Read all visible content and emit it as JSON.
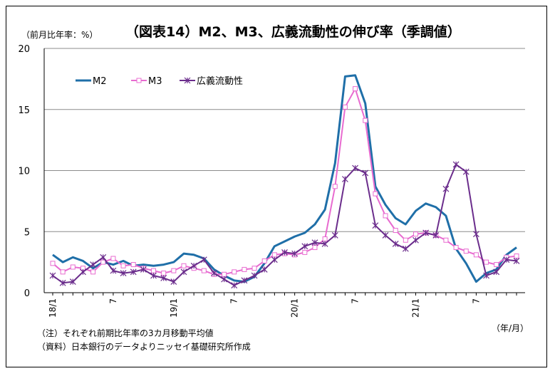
{
  "chart_data": {
    "type": "line",
    "title": "（図表14）M2、M3、広義流動性の伸び率（季調値）",
    "ylabel": "（前月比年率：%）",
    "xlabel": "（年/月）",
    "ylim": [
      0,
      20
    ],
    "yticks": [
      0,
      5,
      10,
      15,
      20
    ],
    "grid": true,
    "legend_position": "top-left",
    "x": [
      "18/1",
      "18/2",
      "18/3",
      "18/4",
      "18/5",
      "18/6",
      "18/7",
      "18/8",
      "18/9",
      "18/10",
      "18/11",
      "18/12",
      "19/1",
      "19/2",
      "19/3",
      "19/4",
      "19/5",
      "19/6",
      "19/7",
      "19/8",
      "19/9",
      "19/10",
      "19/11",
      "19/12",
      "20/1",
      "20/2",
      "20/3",
      "20/4",
      "20/5",
      "20/6",
      "20/7",
      "20/8",
      "20/9",
      "20/10",
      "20/11",
      "20/12",
      "21/1",
      "21/2",
      "21/3",
      "21/4",
      "21/5",
      "21/6",
      "21/7",
      "21/8",
      "21/9",
      "21/10",
      "21/11"
    ],
    "xtick_labels": [
      {
        "index": 0,
        "label": "18/1"
      },
      {
        "index": 6,
        "label": "7"
      },
      {
        "index": 12,
        "label": "19/1"
      },
      {
        "index": 18,
        "label": "7"
      },
      {
        "index": 24,
        "label": "20/1"
      },
      {
        "index": 30,
        "label": "7"
      },
      {
        "index": 36,
        "label": "21/1"
      },
      {
        "index": 42,
        "label": "7"
      }
    ],
    "series": [
      {
        "name": "M2",
        "color": "#1f6fa8",
        "marker": "none",
        "values": [
          3.1,
          2.5,
          2.9,
          2.6,
          2.0,
          2.5,
          2.3,
          2.6,
          2.2,
          2.3,
          2.2,
          2.3,
          2.5,
          3.2,
          3.1,
          2.8,
          1.9,
          1.4,
          1.0,
          0.9,
          1.3,
          2.4,
          3.8,
          4.2,
          4.6,
          4.9,
          5.6,
          6.8,
          10.6,
          17.7,
          17.8,
          15.5,
          8.7,
          7.2,
          6.1,
          5.6,
          6.7,
          7.3,
          7.0,
          6.3,
          3.6,
          2.4,
          0.9,
          1.6,
          1.9,
          3.1,
          3.7
        ]
      },
      {
        "name": "M3",
        "color": "#e86bd0",
        "marker": "square",
        "values": [
          2.4,
          1.7,
          2.1,
          2.0,
          1.7,
          2.5,
          2.8,
          2.2,
          2.3,
          2.0,
          1.8,
          1.6,
          1.8,
          2.2,
          2.0,
          1.8,
          1.5,
          1.5,
          1.7,
          1.9,
          2.0,
          2.6,
          3.1,
          3.2,
          3.1,
          3.3,
          3.7,
          4.4,
          8.7,
          15.2,
          16.7,
          14.1,
          8.1,
          6.3,
          5.1,
          4.3,
          4.8,
          4.9,
          4.7,
          4.3,
          3.7,
          3.4,
          3.1,
          2.5,
          2.3,
          2.9,
          3.0
        ]
      },
      {
        "name": "広義流動性",
        "color": "#6b2d8c",
        "marker": "star",
        "values": [
          1.4,
          0.8,
          0.9,
          1.7,
          2.3,
          2.9,
          1.8,
          1.6,
          1.7,
          1.9,
          1.4,
          1.2,
          0.9,
          1.7,
          2.2,
          2.7,
          1.6,
          1.1,
          0.6,
          1.0,
          1.4,
          1.9,
          2.7,
          3.3,
          3.2,
          3.8,
          4.1,
          4.0,
          4.7,
          9.3,
          10.2,
          9.8,
          5.5,
          4.7,
          4.0,
          3.6,
          4.3,
          4.9,
          4.7,
          8.5,
          10.5,
          9.9,
          4.8,
          1.4,
          1.7,
          2.7,
          2.6
        ]
      }
    ]
  },
  "notes": [
    "（注）それぞれ前期比年率の3カ月移動平均値",
    "（資料）日本銀行のデータよりニッセイ基礎研究所作成"
  ]
}
